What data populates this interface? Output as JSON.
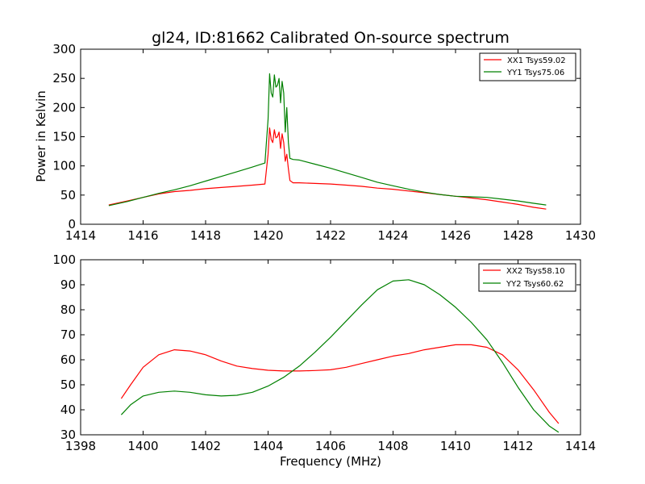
{
  "chart_data": [
    {
      "type": "line",
      "title": "gl24, ID:81662 Calibrated On-source spectrum",
      "xlabel": "",
      "ylabel": "Power in Kelvin",
      "xlim": [
        1414,
        1430
      ],
      "ylim": [
        0,
        300
      ],
      "xticks": [
        "1414",
        "1416",
        "1418",
        "1420",
        "1422",
        "1424",
        "1426",
        "1428",
        "1430"
      ],
      "yticks": [
        "0",
        "50",
        "100",
        "150",
        "200",
        "250",
        "300"
      ],
      "legend_position": "top-right",
      "series": [
        {
          "name": "XX1 Tsys59.02",
          "color": "#ff0000",
          "x": [
            1414.9,
            1415.5,
            1416.0,
            1416.5,
            1417.0,
            1417.5,
            1418.0,
            1418.5,
            1419.0,
            1419.5,
            1419.9,
            1420.0,
            1420.05,
            1420.1,
            1420.15,
            1420.2,
            1420.25,
            1420.3,
            1420.35,
            1420.4,
            1420.45,
            1420.5,
            1420.55,
            1420.6,
            1420.65,
            1420.7,
            1420.8,
            1421.0,
            1421.5,
            1422.0,
            1422.5,
            1423.0,
            1423.5,
            1424.0,
            1424.5,
            1425.0,
            1425.5,
            1426.0,
            1426.5,
            1427.0,
            1427.5,
            1428.0,
            1428.5,
            1428.9
          ],
          "y": [
            33,
            40,
            46,
            52,
            56,
            58,
            61,
            63,
            65,
            67,
            69,
            120,
            165,
            145,
            140,
            162,
            148,
            150,
            158,
            130,
            155,
            140,
            108,
            120,
            95,
            75,
            71,
            71,
            70,
            69,
            67,
            65,
            62,
            60,
            57,
            54,
            51,
            48,
            45,
            42,
            38,
            34,
            29,
            26
          ]
        },
        {
          "name": "YY1 Tsys75.06",
          "color": "#008000",
          "x": [
            1414.9,
            1415.5,
            1416.0,
            1416.5,
            1417.0,
            1417.5,
            1418.0,
            1418.5,
            1419.0,
            1419.5,
            1419.9,
            1420.0,
            1420.05,
            1420.1,
            1420.15,
            1420.2,
            1420.25,
            1420.3,
            1420.35,
            1420.4,
            1420.45,
            1420.5,
            1420.55,
            1420.6,
            1420.65,
            1420.7,
            1420.8,
            1421.0,
            1421.5,
            1422.0,
            1422.5,
            1423.0,
            1423.5,
            1424.0,
            1424.5,
            1425.0,
            1425.5,
            1426.0,
            1426.5,
            1427.0,
            1427.5,
            1428.0,
            1428.5,
            1428.9
          ],
          "y": [
            32,
            39,
            46,
            53,
            59,
            66,
            74,
            82,
            90,
            98,
            105,
            180,
            258,
            225,
            218,
            256,
            235,
            238,
            250,
            208,
            245,
            225,
            158,
            200,
            140,
            113,
            111,
            110,
            103,
            96,
            88,
            80,
            72,
            66,
            60,
            55,
            51,
            48,
            47,
            46,
            43,
            40,
            36,
            33
          ]
        }
      ]
    },
    {
      "type": "line",
      "title": "",
      "xlabel": "Frequency (MHz)",
      "ylabel": "",
      "xlim": [
        1398,
        1414
      ],
      "ylim": [
        30,
        100
      ],
      "xticks": [
        "1398",
        "1400",
        "1402",
        "1404",
        "1406",
        "1408",
        "1410",
        "1412",
        "1414"
      ],
      "yticks": [
        "30",
        "40",
        "50",
        "60",
        "70",
        "80",
        "90",
        "100"
      ],
      "legend_position": "top-right",
      "series": [
        {
          "name": "XX2 Tsys58.10",
          "color": "#ff0000",
          "x": [
            1399.3,
            1399.6,
            1400.0,
            1400.5,
            1401.0,
            1401.5,
            1402.0,
            1402.5,
            1403.0,
            1403.5,
            1404.0,
            1404.5,
            1405.0,
            1405.5,
            1406.0,
            1406.5,
            1407.0,
            1407.5,
            1408.0,
            1408.5,
            1409.0,
            1409.5,
            1410.0,
            1410.5,
            1411.0,
            1411.5,
            1412.0,
            1412.5,
            1413.0,
            1413.3
          ],
          "y": [
            44.5,
            50,
            57,
            62,
            64,
            63.5,
            62,
            59.5,
            57.5,
            56.5,
            55.8,
            55.5,
            55.5,
            55.7,
            56,
            57,
            58.5,
            60,
            61.5,
            62.5,
            64,
            65,
            66,
            66,
            65,
            62,
            56,
            48,
            39,
            34.5
          ]
        },
        {
          "name": "YY2 Tsys60.62",
          "color": "#008000",
          "x": [
            1399.3,
            1399.6,
            1400.0,
            1400.5,
            1401.0,
            1401.5,
            1402.0,
            1402.5,
            1403.0,
            1403.5,
            1404.0,
            1404.5,
            1405.0,
            1405.5,
            1406.0,
            1406.5,
            1407.0,
            1407.5,
            1408.0,
            1408.5,
            1409.0,
            1409.5,
            1410.0,
            1410.5,
            1411.0,
            1411.5,
            1412.0,
            1412.5,
            1413.0,
            1413.3
          ],
          "y": [
            38,
            42,
            45.5,
            47,
            47.5,
            47,
            46,
            45.5,
            45.8,
            47,
            49.5,
            53,
            57.5,
            63,
            69,
            75.5,
            82,
            88,
            91.5,
            92,
            90,
            86,
            81,
            75,
            68,
            59,
            49,
            40,
            33.5,
            31
          ]
        }
      ]
    }
  ]
}
